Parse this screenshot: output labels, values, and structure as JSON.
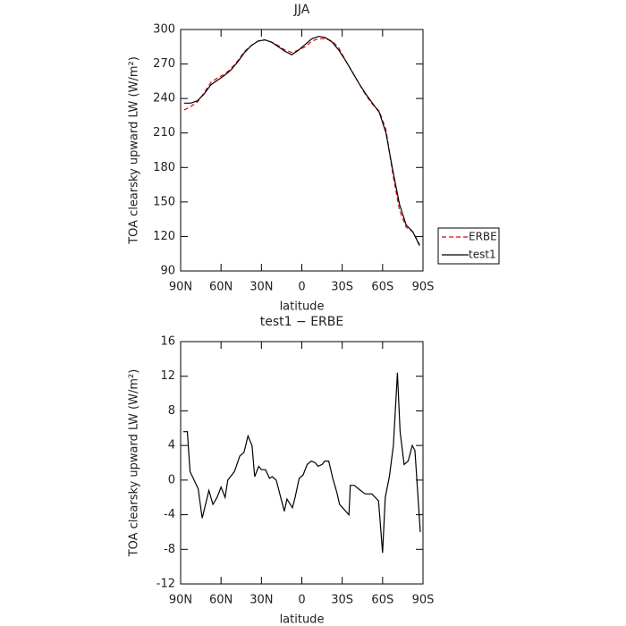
{
  "chart_data": [
    {
      "type": "line",
      "title": "JJA",
      "xlabel": "latitude",
      "ylabel": "TOA clearsky upward LW (W/m²)",
      "x": [
        87.5,
        82.5,
        77.5,
        72.5,
        67.5,
        62.5,
        57.5,
        52.5,
        47.5,
        42.5,
        37.5,
        32.5,
        27.5,
        22.5,
        17.5,
        12.5,
        7.5,
        2.5,
        -2.5,
        -7.5,
        -12.5,
        -17.5,
        -22.5,
        -27.5,
        -32.5,
        -37.5,
        -42.5,
        -47.5,
        -52.5,
        -57.5,
        -62.5,
        -67.5,
        -72.5,
        -77.5,
        -82.5,
        -87.5
      ],
      "series": [
        {
          "name": "ERBE",
          "color": "#e8000b",
          "dashed": true,
          "values": [
            230,
            233,
            237,
            245,
            254,
            258,
            261,
            266,
            273,
            281,
            286,
            290,
            291,
            289,
            286,
            282,
            280,
            282,
            285,
            290,
            292,
            292,
            290,
            284,
            273,
            263,
            253,
            243,
            235,
            229,
            213,
            175,
            143,
            128,
            124,
            113
          ]
        },
        {
          "name": "test1",
          "color": "#000000",
          "dashed": false,
          "values": [
            236,
            236,
            238,
            244,
            252,
            256,
            260,
            265,
            272,
            280,
            286,
            290,
            291,
            289,
            285,
            281,
            278,
            282,
            287,
            292,
            294,
            293,
            289,
            282,
            273,
            263,
            253,
            244,
            236,
            228,
            210,
            178,
            148,
            130,
            124,
            112
          ]
        }
      ],
      "xlim": [
        90,
        -90
      ],
      "xticks": [
        {
          "value": 90,
          "label": "90N"
        },
        {
          "value": 60,
          "label": "60N"
        },
        {
          "value": 30,
          "label": "30N"
        },
        0,
        {
          "value": -30,
          "label": "30S"
        },
        {
          "value": -60,
          "label": "60S"
        },
        {
          "value": -90,
          "label": "90S"
        }
      ],
      "ylim": [
        90,
        300
      ],
      "yticks": [
        90,
        120,
        150,
        180,
        210,
        240,
        270,
        300
      ],
      "legend": "right"
    },
    {
      "type": "line",
      "title": "test1 − ERBE",
      "xlabel": "latitude",
      "ylabel": "TOA clearsky upward LW (W/m²)",
      "x": [
        88,
        85,
        83,
        77,
        74,
        69,
        66,
        63,
        60,
        57,
        55,
        50,
        46,
        43,
        40,
        37,
        35,
        32,
        30,
        27,
        24,
        22,
        19,
        16,
        13,
        11,
        7,
        5,
        2,
        -1,
        -4,
        -7,
        -10,
        -12,
        -15,
        -17,
        -20,
        -23,
        -26,
        -28,
        -35,
        -36,
        -39,
        -42,
        -47,
        -52,
        -57,
        -60,
        -62,
        -65,
        -68,
        -71,
        -73,
        -76,
        -79,
        -82,
        -84,
        -88
      ],
      "series": [
        {
          "name": "test1 − ERBE",
          "color": "#000000",
          "dashed": false,
          "values": [
            5.6,
            5.6,
            1,
            -1,
            -4.4,
            -1.2,
            -2.8,
            -2,
            -0.8,
            -2,
            0,
            1,
            2.8,
            3.2,
            5.1,
            4,
            0.4,
            1.6,
            1.2,
            1.2,
            0.2,
            0.4,
            0,
            -1.8,
            -3.6,
            -2.2,
            -3.2,
            -2,
            0.2,
            0.6,
            1.8,
            2.2,
            2,
            1.6,
            1.8,
            2.2,
            2.2,
            0.2,
            -1.4,
            -2.8,
            -4,
            -0.6,
            -0.6,
            -1,
            -1.6,
            -1.6,
            -2.4,
            -8.4,
            -2,
            0.4,
            4,
            12.4,
            5.6,
            1.8,
            2.2,
            4,
            3.4,
            -6
          ]
        }
      ],
      "xlim": [
        90,
        -90
      ],
      "xticks": [
        {
          "value": 90,
          "label": "90N"
        },
        {
          "value": 60,
          "label": "60N"
        },
        {
          "value": 30,
          "label": "30N"
        },
        0,
        {
          "value": -30,
          "label": "30S"
        },
        {
          "value": -60,
          "label": "60S"
        },
        {
          "value": -90,
          "label": "90S"
        }
      ],
      "ylim": [
        -12,
        16
      ],
      "yticks": [
        -12,
        -8,
        -4,
        0,
        4,
        8,
        12,
        16
      ]
    }
  ]
}
